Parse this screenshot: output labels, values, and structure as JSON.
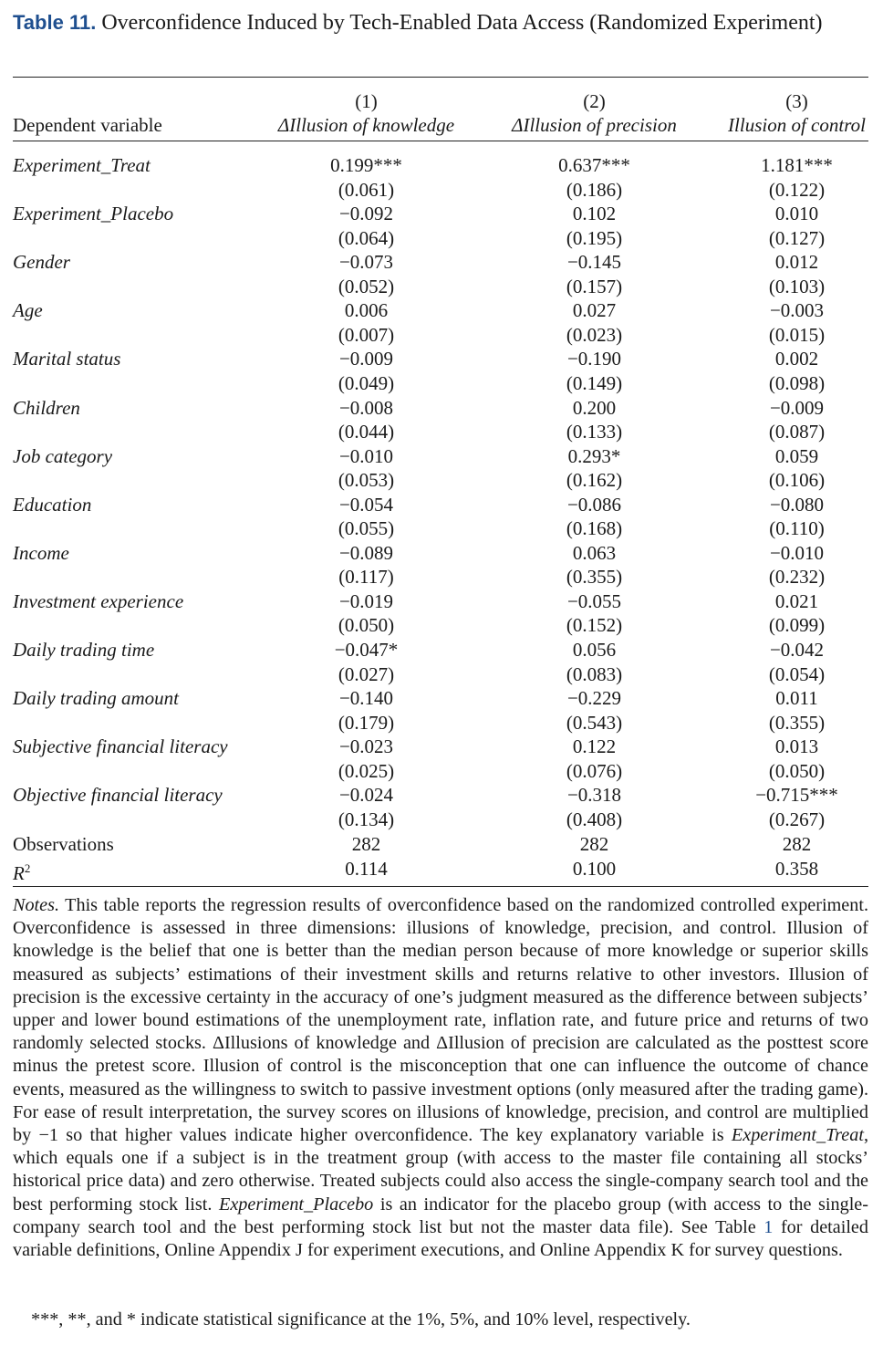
{
  "caption": {
    "label": "Table 11.",
    "title": "Overconfidence Induced by Tech-Enabled Data Access (Randomized Experiment)"
  },
  "header": {
    "dep_var_label": "Dependent variable",
    "columns": [
      {
        "num": "(1)",
        "name": "ΔIllusion of knowledge"
      },
      {
        "num": "(2)",
        "name": "ΔIllusion of precision"
      },
      {
        "num": "(3)",
        "name": "Illusion of control"
      }
    ]
  },
  "rows": [
    {
      "label": "Experiment_Treat",
      "coef": [
        "0.199***",
        "0.637***",
        "1.181***"
      ],
      "se": [
        "(0.061)",
        "(0.186)",
        "(0.122)"
      ]
    },
    {
      "label": "Experiment_Placebo",
      "coef": [
        "−0.092",
        "0.102",
        "0.010"
      ],
      "se": [
        "(0.064)",
        "(0.195)",
        "(0.127)"
      ]
    },
    {
      "label": "Gender",
      "coef": [
        "−0.073",
        "−0.145",
        "0.012"
      ],
      "se": [
        "(0.052)",
        "(0.157)",
        "(0.103)"
      ]
    },
    {
      "label": "Age",
      "coef": [
        "0.006",
        "0.027",
        "−0.003"
      ],
      "se": [
        "(0.007)",
        "(0.023)",
        "(0.015)"
      ]
    },
    {
      "label": "Marital status",
      "coef": [
        "−0.009",
        "−0.190",
        "0.002"
      ],
      "se": [
        "(0.049)",
        "(0.149)",
        "(0.098)"
      ]
    },
    {
      "label": "Children",
      "coef": [
        "−0.008",
        "0.200",
        "−0.009"
      ],
      "se": [
        "(0.044)",
        "(0.133)",
        "(0.087)"
      ]
    },
    {
      "label": "Job category",
      "coef": [
        "−0.010",
        "0.293*",
        "0.059"
      ],
      "se": [
        "(0.053)",
        "(0.162)",
        "(0.106)"
      ]
    },
    {
      "label": "Education",
      "coef": [
        "−0.054",
        "−0.086",
        "−0.080"
      ],
      "se": [
        "(0.055)",
        "(0.168)",
        "(0.110)"
      ]
    },
    {
      "label": "Income",
      "coef": [
        "−0.089",
        "0.063",
        "−0.010"
      ],
      "se": [
        "(0.117)",
        "(0.355)",
        "(0.232)"
      ]
    },
    {
      "label": "Investment experience",
      "coef": [
        "−0.019",
        "−0.055",
        "0.021"
      ],
      "se": [
        "(0.050)",
        "(0.152)",
        "(0.099)"
      ]
    },
    {
      "label": "Daily trading time",
      "coef": [
        "−0.047*",
        "0.056",
        "−0.042"
      ],
      "se": [
        "(0.027)",
        "(0.083)",
        "(0.054)"
      ]
    },
    {
      "label": "Daily trading amount",
      "coef": [
        "−0.140",
        "−0.229",
        "0.011"
      ],
      "se": [
        "(0.179)",
        "(0.543)",
        "(0.355)"
      ]
    },
    {
      "label": "Subjective financial literacy",
      "coef": [
        "−0.023",
        "0.122",
        "0.013"
      ],
      "se": [
        "(0.025)",
        "(0.076)",
        "(0.050)"
      ]
    },
    {
      "label": "Objective financial literacy",
      "coef": [
        "−0.024",
        "−0.318",
        "−0.715***"
      ],
      "se": [
        "(0.134)",
        "(0.408)",
        "(0.267)"
      ]
    }
  ],
  "stats": {
    "obs_label": "Observations",
    "obs": [
      "282",
      "282",
      "282"
    ],
    "r2_label": "R",
    "r2_sup": "2",
    "r2": [
      "0.114",
      "0.100",
      "0.358"
    ]
  },
  "notes": {
    "lead": "Notes.",
    "p1": " This table reports the regression results of overconfidence based on the randomized controlled experiment. Overconfidence is assessed in three dimensions: illusions of knowledge, precision, and control. Illusion of knowledge is the belief that one is better than the median person because of more knowledge or superior skills measured as subjects’ estimations of their investment skills and returns relative to other investors. Illusion of precision is the excessive certainty in the accuracy of one’s judgment measured as the difference between subjects’ upper and lower bound estimations of the unemployment rate, inflation rate, and future price and returns of two randomly selected stocks. ΔIllusions of knowledge and ΔIllusion of precision are calculated as the posttest score minus the pretest score. Illusion of control is the misconception that one can influence the outcome of chance events, measured as the willingness to switch to passive investment options (only measured after the trading game). For ease of result interpretation, the survey scores on illusions of knowledge, precision, and control are multiplied by −1 so that higher values indicate higher overconfidence. The key explanatory variable is ",
    "treat": "Experiment_Treat",
    "p2": ", which equals one if a subject is in the treatment group (with access to the master file containing all stocks’ historical price data) and zero otherwise. Treated subjects could also access the single-company search tool and the best performing stock list. ",
    "placebo": "Experiment_Placebo",
    "p3": " is an indicator for the placebo group (with access to the single-company search tool and the best performing stock list but not the master data file). See Table ",
    "table_ref": "1",
    "p4": " for detailed variable definitions, Online Appendix J for experiment executions, and Online Appendix K for survey questions.",
    "significance": "***, **, and * indicate statistical significance at the 1%, 5%, and 10% level, respectively."
  }
}
